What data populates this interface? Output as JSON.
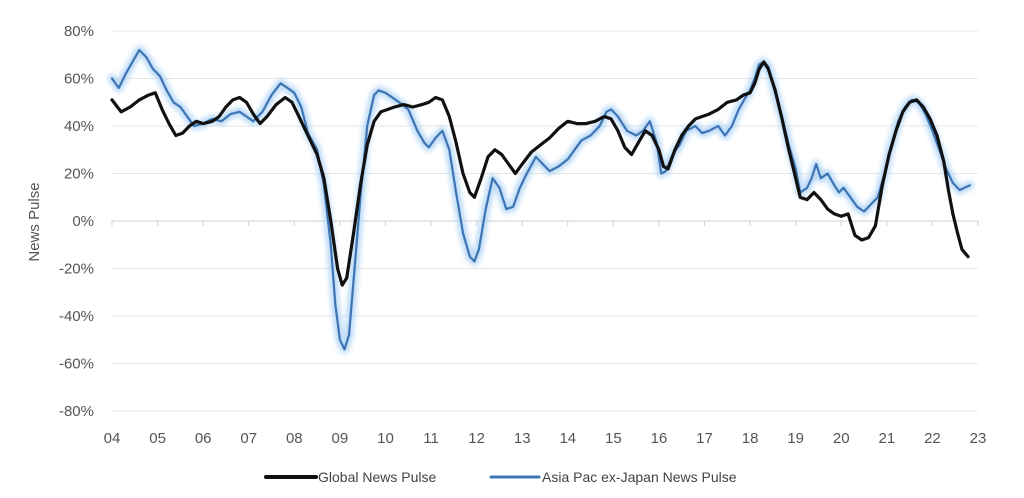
{
  "chart_data": {
    "type": "line",
    "title": "",
    "xlabel": "",
    "ylabel": "News Pulse",
    "x_ticks": [
      "04",
      "05",
      "06",
      "07",
      "08",
      "09",
      "10",
      "11",
      "12",
      "13",
      "14",
      "15",
      "16",
      "17",
      "18",
      "19",
      "20",
      "21",
      "22",
      "23"
    ],
    "y_ticks": [
      "80%",
      "60%",
      "40%",
      "20%",
      "0%",
      "-20%",
      "-40%",
      "-60%",
      "-80%"
    ],
    "xlim": [
      2004.0,
      2023.0
    ],
    "ylim": [
      -80,
      80
    ],
    "grid": "horizontal",
    "legend_position": "bottom",
    "series": [
      {
        "name": "Global News Pulse",
        "color": "#111111",
        "points": [
          [
            2004.0,
            51
          ],
          [
            2004.2,
            46
          ],
          [
            2004.4,
            48
          ],
          [
            2004.6,
            51
          ],
          [
            2004.8,
            53
          ],
          [
            2004.95,
            54
          ],
          [
            2005.1,
            47
          ],
          [
            2005.25,
            41
          ],
          [
            2005.4,
            36
          ],
          [
            2005.55,
            37
          ],
          [
            2005.7,
            40
          ],
          [
            2005.85,
            42
          ],
          [
            2006.0,
            41
          ],
          [
            2006.2,
            42
          ],
          [
            2006.35,
            44
          ],
          [
            2006.5,
            48
          ],
          [
            2006.65,
            51
          ],
          [
            2006.8,
            52
          ],
          [
            2006.95,
            50
          ],
          [
            2007.1,
            45
          ],
          [
            2007.25,
            41
          ],
          [
            2007.4,
            44
          ],
          [
            2007.6,
            49
          ],
          [
            2007.8,
            52
          ],
          [
            2007.95,
            50
          ],
          [
            2008.1,
            44
          ],
          [
            2008.3,
            36
          ],
          [
            2008.5,
            28
          ],
          [
            2008.65,
            18
          ],
          [
            2008.8,
            0
          ],
          [
            2008.95,
            -20
          ],
          [
            2009.05,
            -27
          ],
          [
            2009.15,
            -24
          ],
          [
            2009.3,
            -5
          ],
          [
            2009.45,
            15
          ],
          [
            2009.6,
            32
          ],
          [
            2009.75,
            42
          ],
          [
            2009.9,
            46
          ],
          [
            2010.05,
            47
          ],
          [
            2010.2,
            48
          ],
          [
            2010.4,
            49
          ],
          [
            2010.6,
            48
          ],
          [
            2010.8,
            49
          ],
          [
            2010.95,
            50
          ],
          [
            2011.1,
            52
          ],
          [
            2011.25,
            51
          ],
          [
            2011.4,
            44
          ],
          [
            2011.55,
            33
          ],
          [
            2011.7,
            20
          ],
          [
            2011.85,
            12
          ],
          [
            2011.95,
            10
          ],
          [
            2012.1,
            18
          ],
          [
            2012.25,
            27
          ],
          [
            2012.4,
            30
          ],
          [
            2012.55,
            28
          ],
          [
            2012.7,
            24
          ],
          [
            2012.85,
            20
          ],
          [
            2013.0,
            24
          ],
          [
            2013.2,
            29
          ],
          [
            2013.4,
            32
          ],
          [
            2013.6,
            35
          ],
          [
            2013.8,
            39
          ],
          [
            2014.0,
            42
          ],
          [
            2014.2,
            41
          ],
          [
            2014.4,
            41
          ],
          [
            2014.6,
            42
          ],
          [
            2014.8,
            44
          ],
          [
            2014.95,
            43
          ],
          [
            2015.1,
            38
          ],
          [
            2015.25,
            31
          ],
          [
            2015.4,
            28
          ],
          [
            2015.55,
            33
          ],
          [
            2015.7,
            38
          ],
          [
            2015.85,
            36
          ],
          [
            2016.0,
            30
          ],
          [
            2016.1,
            23
          ],
          [
            2016.2,
            22
          ],
          [
            2016.35,
            30
          ],
          [
            2016.5,
            36
          ],
          [
            2016.65,
            40
          ],
          [
            2016.8,
            43
          ],
          [
            2016.95,
            44
          ],
          [
            2017.1,
            45
          ],
          [
            2017.3,
            47
          ],
          [
            2017.5,
            50
          ],
          [
            2017.7,
            51
          ],
          [
            2017.85,
            53
          ],
          [
            2018.0,
            54
          ],
          [
            2018.1,
            58
          ],
          [
            2018.2,
            64
          ],
          [
            2018.3,
            67
          ],
          [
            2018.4,
            64
          ],
          [
            2018.55,
            55
          ],
          [
            2018.7,
            43
          ],
          [
            2018.85,
            30
          ],
          [
            2019.0,
            18
          ],
          [
            2019.1,
            10
          ],
          [
            2019.25,
            9
          ],
          [
            2019.4,
            12
          ],
          [
            2019.55,
            9
          ],
          [
            2019.7,
            5
          ],
          [
            2019.85,
            3
          ],
          [
            2020.0,
            2
          ],
          [
            2020.15,
            3
          ],
          [
            2020.3,
            -6
          ],
          [
            2020.45,
            -8
          ],
          [
            2020.6,
            -7
          ],
          [
            2020.75,
            -2
          ],
          [
            2020.9,
            15
          ],
          [
            2021.05,
            28
          ],
          [
            2021.2,
            38
          ],
          [
            2021.35,
            46
          ],
          [
            2021.5,
            50
          ],
          [
            2021.65,
            51
          ],
          [
            2021.8,
            48
          ],
          [
            2021.95,
            43
          ],
          [
            2022.1,
            36
          ],
          [
            2022.25,
            25
          ],
          [
            2022.35,
            13
          ],
          [
            2022.45,
            3
          ],
          [
            2022.55,
            -5
          ],
          [
            2022.65,
            -12
          ],
          [
            2022.78,
            -15
          ]
        ]
      },
      {
        "name": "Asia Pac ex-Japan News Pulse",
        "color": "#3d74b4",
        "points": [
          [
            2004.0,
            60
          ],
          [
            2004.15,
            56
          ],
          [
            2004.3,
            62
          ],
          [
            2004.45,
            67
          ],
          [
            2004.6,
            72
          ],
          [
            2004.75,
            69
          ],
          [
            2004.9,
            64
          ],
          [
            2005.05,
            61
          ],
          [
            2005.2,
            55
          ],
          [
            2005.35,
            50
          ],
          [
            2005.5,
            48
          ],
          [
            2005.65,
            44
          ],
          [
            2005.8,
            40
          ],
          [
            2006.0,
            41
          ],
          [
            2006.2,
            43
          ],
          [
            2006.4,
            42
          ],
          [
            2006.6,
            45
          ],
          [
            2006.8,
            46
          ],
          [
            2006.95,
            44
          ],
          [
            2007.1,
            42
          ],
          [
            2007.3,
            46
          ],
          [
            2007.5,
            53
          ],
          [
            2007.7,
            58
          ],
          [
            2007.85,
            56
          ],
          [
            2008.0,
            54
          ],
          [
            2008.15,
            48
          ],
          [
            2008.3,
            37
          ],
          [
            2008.5,
            30
          ],
          [
            2008.65,
            15
          ],
          [
            2008.8,
            -10
          ],
          [
            2008.9,
            -35
          ],
          [
            2009.0,
            -50
          ],
          [
            2009.1,
            -54
          ],
          [
            2009.2,
            -48
          ],
          [
            2009.3,
            -25
          ],
          [
            2009.45,
            10
          ],
          [
            2009.6,
            40
          ],
          [
            2009.75,
            53
          ],
          [
            2009.85,
            55
          ],
          [
            2010.0,
            54
          ],
          [
            2010.15,
            52
          ],
          [
            2010.3,
            50
          ],
          [
            2010.5,
            47
          ],
          [
            2010.7,
            38
          ],
          [
            2010.85,
            33
          ],
          [
            2010.95,
            31
          ],
          [
            2011.1,
            35
          ],
          [
            2011.25,
            38
          ],
          [
            2011.4,
            30
          ],
          [
            2011.55,
            12
          ],
          [
            2011.7,
            -5
          ],
          [
            2011.85,
            -15
          ],
          [
            2011.95,
            -17
          ],
          [
            2012.05,
            -12
          ],
          [
            2012.2,
            5
          ],
          [
            2012.35,
            18
          ],
          [
            2012.5,
            14
          ],
          [
            2012.65,
            5
          ],
          [
            2012.8,
            6
          ],
          [
            2012.95,
            14
          ],
          [
            2013.1,
            20
          ],
          [
            2013.3,
            27
          ],
          [
            2013.45,
            24
          ],
          [
            2013.6,
            21
          ],
          [
            2013.8,
            23
          ],
          [
            2014.0,
            26
          ],
          [
            2014.15,
            30
          ],
          [
            2014.3,
            34
          ],
          [
            2014.5,
            36
          ],
          [
            2014.7,
            40
          ],
          [
            2014.85,
            46
          ],
          [
            2014.95,
            47
          ],
          [
            2015.1,
            44
          ],
          [
            2015.3,
            38
          ],
          [
            2015.5,
            36
          ],
          [
            2015.65,
            38
          ],
          [
            2015.8,
            42
          ],
          [
            2015.95,
            33
          ],
          [
            2016.05,
            20
          ],
          [
            2016.15,
            21
          ],
          [
            2016.3,
            28
          ],
          [
            2016.45,
            32
          ],
          [
            2016.6,
            38
          ],
          [
            2016.8,
            40
          ],
          [
            2016.95,
            37
          ],
          [
            2017.1,
            38
          ],
          [
            2017.3,
            40
          ],
          [
            2017.45,
            36
          ],
          [
            2017.6,
            40
          ],
          [
            2017.75,
            47
          ],
          [
            2017.9,
            52
          ],
          [
            2018.0,
            55
          ],
          [
            2018.1,
            60
          ],
          [
            2018.2,
            66
          ],
          [
            2018.3,
            67
          ],
          [
            2018.4,
            65
          ],
          [
            2018.55,
            54
          ],
          [
            2018.7,
            44
          ],
          [
            2018.85,
            32
          ],
          [
            2019.0,
            22
          ],
          [
            2019.1,
            12
          ],
          [
            2019.25,
            14
          ],
          [
            2019.35,
            18
          ],
          [
            2019.45,
            24
          ],
          [
            2019.55,
            18
          ],
          [
            2019.7,
            20
          ],
          [
            2019.85,
            15
          ],
          [
            2019.95,
            12
          ],
          [
            2020.05,
            14
          ],
          [
            2020.2,
            10
          ],
          [
            2020.35,
            6
          ],
          [
            2020.5,
            4
          ],
          [
            2020.65,
            7
          ],
          [
            2020.8,
            10
          ],
          [
            2020.95,
            20
          ],
          [
            2021.1,
            32
          ],
          [
            2021.25,
            42
          ],
          [
            2021.4,
            48
          ],
          [
            2021.55,
            51
          ],
          [
            2021.7,
            50
          ],
          [
            2021.85,
            45
          ],
          [
            2022.0,
            38
          ],
          [
            2022.15,
            30
          ],
          [
            2022.3,
            22
          ],
          [
            2022.45,
            16
          ],
          [
            2022.6,
            13
          ],
          [
            2022.7,
            14
          ],
          [
            2022.82,
            15
          ]
        ]
      }
    ]
  }
}
